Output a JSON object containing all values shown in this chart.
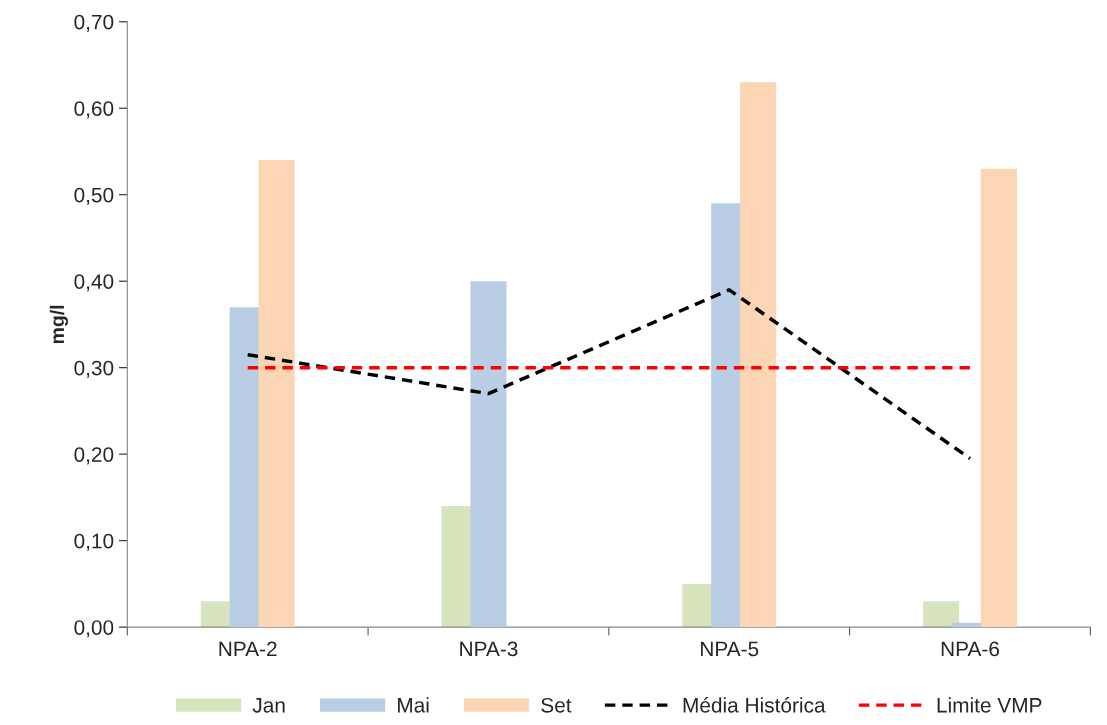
{
  "chart_data": {
    "type": "bar",
    "ylabel": "mg/l",
    "categories": [
      "NPA-2",
      "NPA-3",
      "NPA-5",
      "NPA-6"
    ],
    "series": [
      {
        "name": "Jan",
        "color": "#d7e4bd",
        "values": [
          0.03,
          0.14,
          0.05,
          0.03
        ]
      },
      {
        "name": "Mai",
        "color": "#b9cde5",
        "values": [
          0.37,
          0.4,
          0.49,
          0.005
        ]
      },
      {
        "name": "Set",
        "color": "#fcd5b5",
        "values": [
          0.54,
          null,
          0.63,
          0.53
        ]
      },
      {
        "name": "Média Histórica",
        "type": "line",
        "color": "#000000",
        "line_style": "dashed",
        "values": [
          0.315,
          0.27,
          0.39,
          0.195
        ]
      },
      {
        "name": "Limite VMP",
        "type": "line",
        "color": "#ff0000",
        "line_style": "dashed",
        "values": [
          0.3,
          0.3,
          0.3,
          0.3
        ]
      }
    ],
    "ylim": [
      0,
      0.7
    ],
    "yticks": [
      {
        "value": 0,
        "label": "0,00"
      },
      {
        "value": 0.1,
        "label": "0,10"
      },
      {
        "value": 0.2,
        "label": "0,20"
      },
      {
        "value": 0.3,
        "label": "0,30"
      },
      {
        "value": 0.4,
        "label": "0,40"
      },
      {
        "value": 0.5,
        "label": "0,50"
      },
      {
        "value": 0.6,
        "label": "0,60"
      },
      {
        "value": 0.7,
        "label": "0,70"
      }
    ],
    "grid": false,
    "legend": "bottom",
    "marker": "none"
  }
}
